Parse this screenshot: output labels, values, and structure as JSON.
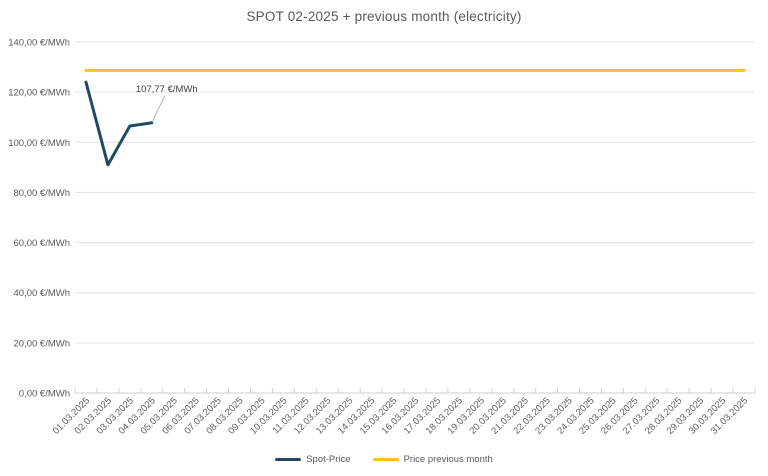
{
  "chart": {
    "title": "SPOT 02-2025 + previous month (electricity)",
    "legend": [
      {
        "label": "Spot-Price",
        "color": "#1f4a63"
      },
      {
        "label": "Price previous month",
        "color": "#fec21e"
      }
    ]
  },
  "chart_data": {
    "type": "line",
    "title": "SPOT 02-2025 + previous month (electricity)",
    "xlabel": "",
    "ylabel": "€/MWh",
    "ylim": [
      0,
      140
    ],
    "grid": "horizontal",
    "legend_position": "bottom",
    "y_ticks": [
      {
        "value": 140,
        "label": "140,00 €/MWh"
      },
      {
        "value": 120,
        "label": "120,00 €/MWh"
      },
      {
        "value": 100,
        "label": "100,00 €/MWh"
      },
      {
        "value": 80,
        "label": "80,00 €/MWh"
      },
      {
        "value": 60,
        "label": "60,00 €/MWh"
      },
      {
        "value": 40,
        "label": "40,00 €/MWh"
      },
      {
        "value": 20,
        "label": "20,00 €/MWh"
      },
      {
        "value": 0,
        "label": "0,00 €/MWh"
      }
    ],
    "categories": [
      "01.03.2025",
      "02.03.2025",
      "03.03.2025",
      "04.03.2025",
      "05.03.2025",
      "06.03.2025",
      "07.03.2025",
      "08.03.2025",
      "09.03.2025",
      "10.03.2025",
      "11.03.2025",
      "12.03.2025",
      "13.03.2025",
      "14.03.2025",
      "15.03.2025",
      "16.03.2025",
      "17.03.2025",
      "18.03.2025",
      "19.03.2025",
      "20.03.2025",
      "21.03.2025",
      "22.03.2025",
      "23.03.2025",
      "24.03.2025",
      "25.03.2025",
      "26.03.2025",
      "27.03.2025",
      "28.03.2025",
      "29.03.2025",
      "30.03.2025",
      "31.03.2025"
    ],
    "series": [
      {
        "name": "Spot-Price",
        "color": "#1f4a63",
        "values": [
          124,
          91,
          106.5,
          107.77,
          null,
          null,
          null,
          null,
          null,
          null,
          null,
          null,
          null,
          null,
          null,
          null,
          null,
          null,
          null,
          null,
          null,
          null,
          null,
          null,
          null,
          null,
          null,
          null,
          null,
          null,
          null
        ]
      },
      {
        "name": "Price previous month",
        "color": "#fec21e",
        "values": [
          128.7,
          128.7,
          128.7,
          128.7,
          128.7,
          128.7,
          128.7,
          128.7,
          128.7,
          128.7,
          128.7,
          128.7,
          128.7,
          128.7,
          128.7,
          128.7,
          128.7,
          128.7,
          128.7,
          128.7,
          128.7,
          128.7,
          128.7,
          128.7,
          128.7,
          128.7,
          128.7,
          128.7,
          128.7,
          128.7,
          128.7
        ]
      }
    ],
    "annotation": {
      "text": "107,77 €/MWh",
      "series": "Spot-Price",
      "category": "04.03.2025",
      "category_index": 3,
      "value": 107.77
    }
  }
}
